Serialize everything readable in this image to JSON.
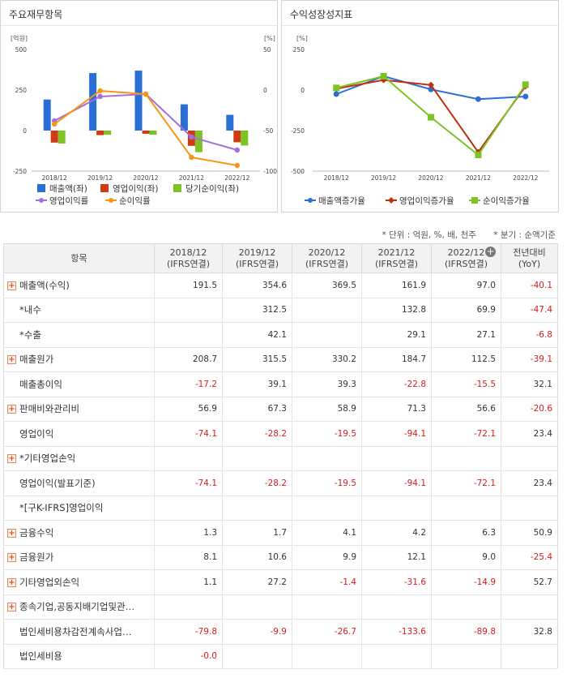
{
  "left_panel": {
    "title": "주요재무항목",
    "left_unit": "[억원]",
    "right_unit": "[%]",
    "left_ticks": [
      "500",
      "250",
      "0",
      "-250"
    ],
    "right_ticks": [
      "50",
      "0",
      "-50",
      "-100"
    ],
    "legend": [
      "매출액(좌)",
      "영업이익(좌)",
      "당기순이익(좌)",
      "영업이익률",
      "순이익률"
    ]
  },
  "right_panel": {
    "title": "수익성장성지표",
    "unit": "[%]",
    "ticks": [
      "250",
      "0",
      "-250",
      "-500"
    ],
    "legend": [
      "매출액증가율",
      "영업이익증가율",
      "순이익증가율"
    ]
  },
  "chart_data": [
    {
      "type": "bar",
      "categories": [
        "2018/12",
        "2019/12",
        "2020/12",
        "2021/12",
        "2022/12"
      ],
      "ylim": [
        -250,
        500
      ],
      "y2lim": [
        -100,
        50
      ],
      "series": [
        {
          "name": "매출액(좌)",
          "kind": "bar",
          "axis": "left",
          "color": "#2a6fd6",
          "values": [
            191.5,
            354.6,
            369.5,
            161.9,
            97.0
          ]
        },
        {
          "name": "영업이익(좌)",
          "kind": "bar",
          "axis": "left",
          "color": "#d23a14",
          "values": [
            -74.1,
            -28.2,
            -19.5,
            -94.1,
            -72.1
          ]
        },
        {
          "name": "당기순이익(좌)",
          "kind": "bar",
          "axis": "left",
          "color": "#7cc324",
          "values": [
            -79.8,
            -26,
            -26,
            -133,
            -92
          ]
        },
        {
          "name": "영업이익률",
          "kind": "line",
          "axis": "right",
          "color": "#a46fdc",
          "values": [
            -38,
            -8,
            -5,
            -58,
            -74
          ]
        },
        {
          "name": "순이익률",
          "kind": "line",
          "axis": "right",
          "color": "#f5961b",
          "values": [
            -42,
            -1,
            -5,
            -83,
            -93
          ]
        }
      ]
    },
    {
      "type": "line",
      "categories": [
        "2018/12",
        "2019/12",
        "2020/12",
        "2021/12",
        "2022/12"
      ],
      "ylim": [
        -500,
        250
      ],
      "series": [
        {
          "name": "매출액증가율",
          "color": "#2a6fd6",
          "values": [
            -25,
            85,
            4,
            -56,
            -40
          ]
        },
        {
          "name": "영업이익증가율",
          "color": "#c0300f",
          "values": [
            8,
            62,
            31,
            -383,
            23
          ]
        },
        {
          "name": "순이익증가율",
          "color": "#7cc324",
          "values": [
            13,
            85,
            -168,
            -400,
            33
          ]
        }
      ]
    }
  ],
  "notes": {
    "unit": "* 단위 : 억원, %, 배, 천주",
    "quarter": "* 분기 : 순액기준"
  },
  "table": {
    "header_item": "항목",
    "columns": [
      {
        "year": "2018/12",
        "basis": "(IFRS연결)"
      },
      {
        "year": "2019/12",
        "basis": "(IFRS연결)"
      },
      {
        "year": "2020/12",
        "basis": "(IFRS연결)"
      },
      {
        "year": "2021/12",
        "basis": "(IFRS연결)"
      },
      {
        "year": "2022/12",
        "basis": "(IFRS연결)"
      }
    ],
    "yoy": {
      "line1": "전년대비",
      "line2": "(YoY)"
    },
    "rows": [
      {
        "label": "매출액(수익)",
        "expand": true,
        "values": [
          "191.5",
          "354.6",
          "369.5",
          "161.9",
          "97.0",
          "-40.1"
        ]
      },
      {
        "label": "*내수",
        "expand": false,
        "values": [
          "",
          "312.5",
          "",
          "132.8",
          "69.9",
          "-47.4"
        ]
      },
      {
        "label": "*수출",
        "expand": false,
        "values": [
          "",
          "42.1",
          "",
          "29.1",
          "27.1",
          "-6.8"
        ]
      },
      {
        "label": "매출원가",
        "expand": true,
        "values": [
          "208.7",
          "315.5",
          "330.2",
          "184.7",
          "112.5",
          "-39.1"
        ]
      },
      {
        "label": "매출총이익",
        "expand": false,
        "values": [
          "-17.2",
          "39.1",
          "39.3",
          "-22.8",
          "-15.5",
          "32.1"
        ]
      },
      {
        "label": "판매비와관리비",
        "expand": true,
        "values": [
          "56.9",
          "67.3",
          "58.9",
          "71.3",
          "56.6",
          "-20.6"
        ]
      },
      {
        "label": "영업이익",
        "expand": false,
        "values": [
          "-74.1",
          "-28.2",
          "-19.5",
          "-94.1",
          "-72.1",
          "23.4"
        ]
      },
      {
        "label": "*기타영업손익",
        "expand": true,
        "values": [
          "",
          "",
          "",
          "",
          "",
          ""
        ]
      },
      {
        "label": "영업이익(발표기준)",
        "expand": false,
        "values": [
          "-74.1",
          "-28.2",
          "-19.5",
          "-94.1",
          "-72.1",
          "23.4"
        ]
      },
      {
        "label": "*[구K-IFRS]영업이익",
        "expand": false,
        "values": [
          "",
          "",
          "",
          "",
          "",
          ""
        ]
      },
      {
        "label": "금융수익",
        "expand": true,
        "values": [
          "1.3",
          "1.7",
          "4.1",
          "4.2",
          "6.3",
          "50.9"
        ]
      },
      {
        "label": "금융원가",
        "expand": true,
        "values": [
          "8.1",
          "10.6",
          "9.9",
          "12.1",
          "9.0",
          "-25.4"
        ]
      },
      {
        "label": "기타영업외손익",
        "expand": true,
        "values": [
          "1.1",
          "27.2",
          "-1.4",
          "-31.6",
          "-14.9",
          "52.7"
        ]
      },
      {
        "label": "종속기업,공동지배기업및관…",
        "expand": true,
        "values": [
          "",
          "",
          "",
          "",
          "",
          ""
        ]
      },
      {
        "label": "법인세비용차감전계속사업…",
        "expand": false,
        "values": [
          "-79.8",
          "-9.9",
          "-26.7",
          "-133.6",
          "-89.8",
          "32.8"
        ]
      },
      {
        "label": "법인세비용",
        "expand": false,
        "values": [
          "-0.0",
          "",
          "",
          "",
          "",
          ""
        ]
      }
    ]
  }
}
